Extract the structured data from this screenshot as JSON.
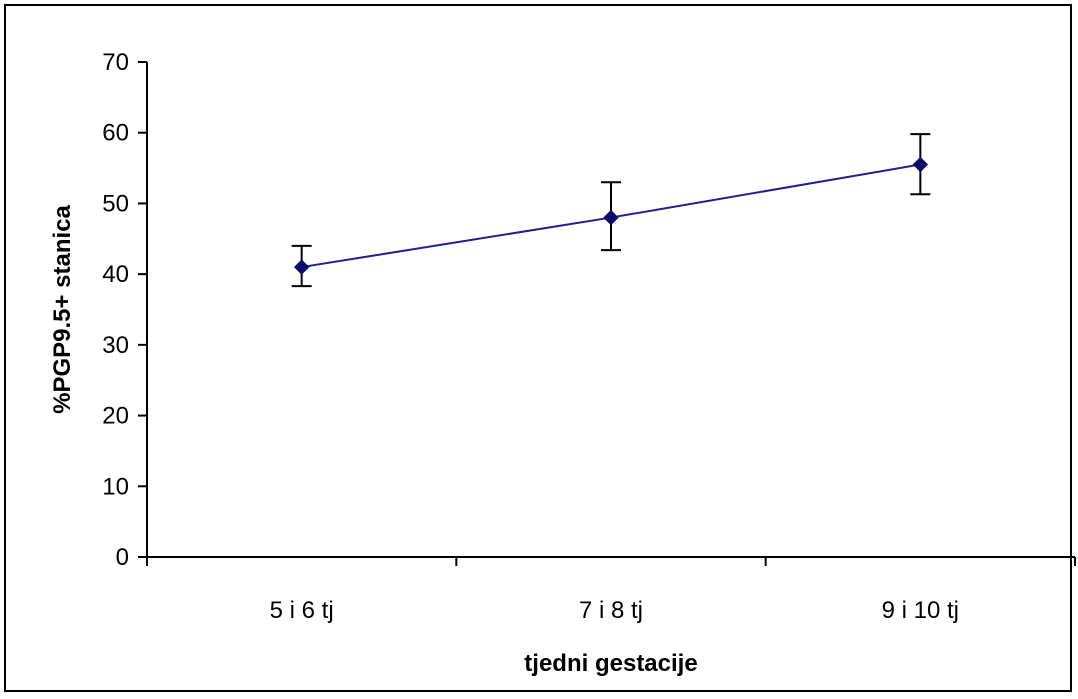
{
  "chart_data": {
    "type": "line",
    "title": "",
    "xlabel": "tjedni gestacije",
    "ylabel": "%PGP9.5+ stanica",
    "categories": [
      "5 i 6 tj",
      "7 i 8 tj",
      "9 i 10 tj"
    ],
    "series": [
      {
        "values": [
          41,
          48,
          55.5
        ],
        "error_low": [
          38.3,
          43.4,
          51.3
        ],
        "error_high": [
          44,
          53,
          59.8
        ]
      }
    ],
    "ylim": [
      0,
      70
    ],
    "yticks": [
      0,
      10,
      20,
      30,
      40,
      50,
      60,
      70
    ],
    "grid": false,
    "legend": "none",
    "colors": {
      "line": "#1f1f8f",
      "marker": "#0b0b6b",
      "axis": "#000000"
    }
  }
}
